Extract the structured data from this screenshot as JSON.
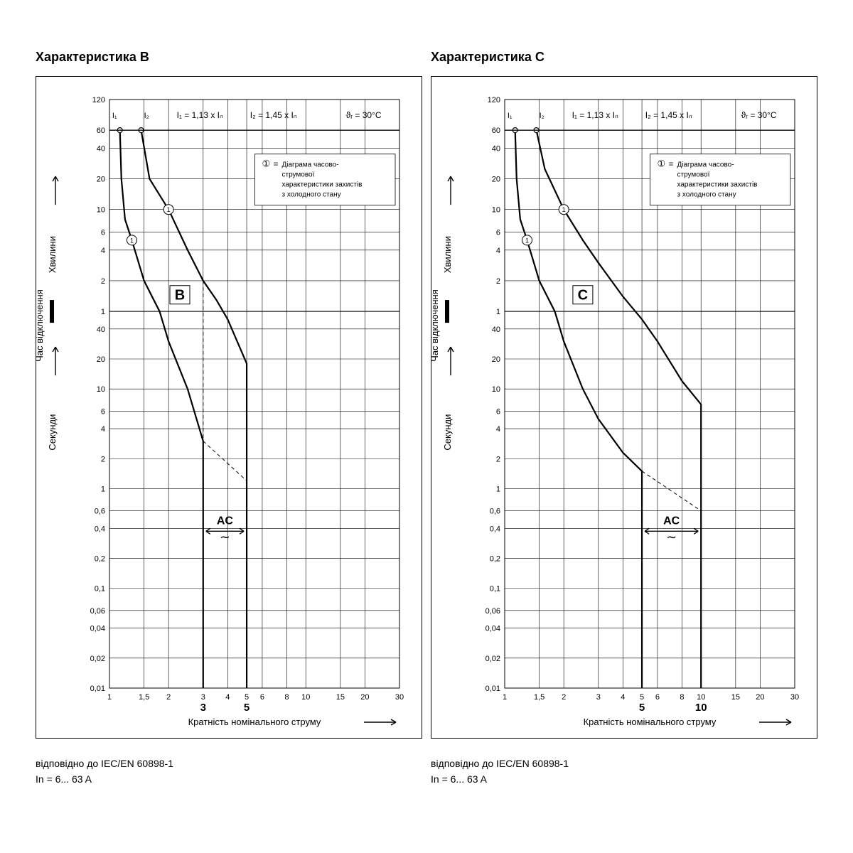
{
  "titles": {
    "b": "Характеристика B",
    "c": "Характеристика C"
  },
  "footers": {
    "b1": "відповідно до IEC/EN 60898-1",
    "b2": "In = 6... 63 A",
    "c1": "відповідно до IEC/EN 60898-1",
    "c2": "In = 6... 63 A"
  },
  "axes": {
    "xlabel": "Кратність номінального струму",
    "ylabel_upper": "Хвилини",
    "ylabel_lower": "Секунди",
    "ylabel_main": "Час відключення",
    "xticks": [
      1,
      1.5,
      2,
      3,
      4,
      5,
      6,
      8,
      10,
      15,
      20,
      30
    ],
    "xtick_labels": [
      "1",
      "1,5",
      "2",
      "3",
      "4",
      "5",
      "6",
      "8",
      "10",
      "15",
      "20",
      "30"
    ],
    "upper_ticks": [
      1,
      2,
      4,
      6,
      10,
      20,
      40,
      60,
      120
    ],
    "upper_labels": [
      "1",
      "2",
      "4",
      "6",
      "10",
      "20",
      "40",
      "60",
      "120"
    ],
    "lower_ticks": [
      0.01,
      0.02,
      0.04,
      0.06,
      0.1,
      0.2,
      0.4,
      0.6,
      1,
      2,
      4,
      6,
      10,
      20,
      40
    ],
    "lower_labels": [
      "0,01",
      "0,02",
      "0,04",
      "0,06",
      "0,1",
      "0,2",
      "0,4",
      "0,6",
      "1",
      "2",
      "4",
      "6",
      "10",
      "20",
      "40"
    ]
  },
  "annotations": {
    "i1": "I₁",
    "i2": "I₂",
    "eq1": "I₁ = 1,13 x Iₙ",
    "eq2": "I₂ = 1,45 x Iₙ",
    "temp": "ϑᵣ = 30°C",
    "legend_num": "①",
    "legend_eq": "=",
    "legend_txt": "Діаграма часово-\nструмової\nхарактеристики захистів\nз холодного стану",
    "ac": "AC",
    "tilde": "∼",
    "big_b": "B",
    "big_c": "C"
  },
  "style": {
    "curve_width": 2.2,
    "grid_color": "#000",
    "grid_width": 0.6,
    "font_tick": 11,
    "font_axis": 13,
    "font_big": 20
  },
  "trip_bounds": {
    "b": {
      "lo": 3,
      "hi": 5,
      "bold_lo": "3",
      "bold_hi": "5"
    },
    "c": {
      "lo": 5,
      "hi": 10,
      "bold_lo": "5",
      "bold_hi": "10"
    }
  },
  "curves": {
    "b_upper": [
      {
        "x": 1.45,
        "m": 60
      },
      {
        "x": 1.6,
        "m": 20
      },
      {
        "x": 2,
        "m": 10
      },
      {
        "x": 2.5,
        "m": 4
      },
      {
        "x": 3,
        "m": 2
      },
      {
        "x": 3.5,
        "m": 1.3
      },
      {
        "x": 4,
        "s": 50
      },
      {
        "x": 5,
        "s": 18
      }
    ],
    "b_lower": [
      {
        "x": 1.13,
        "m": 60
      },
      {
        "x": 1.15,
        "m": 20
      },
      {
        "x": 1.2,
        "m": 8
      },
      {
        "x": 1.3,
        "m": 5
      },
      {
        "x": 1.5,
        "m": 2
      },
      {
        "x": 1.8,
        "m": 1
      },
      {
        "x": 2,
        "s": 30
      },
      {
        "x": 2.5,
        "s": 10
      },
      {
        "x": 3,
        "s": 3
      }
    ],
    "c_upper": [
      {
        "x": 1.45,
        "m": 60
      },
      {
        "x": 1.6,
        "m": 25
      },
      {
        "x": 2,
        "m": 10
      },
      {
        "x": 2.5,
        "m": 5
      },
      {
        "x": 3,
        "m": 3
      },
      {
        "x": 4,
        "m": 1.4
      },
      {
        "x": 5,
        "s": 50
      },
      {
        "x": 6,
        "s": 30
      },
      {
        "x": 8,
        "s": 12
      },
      {
        "x": 10,
        "s": 7
      }
    ],
    "c_lower": [
      {
        "x": 1.13,
        "m": 60
      },
      {
        "x": 1.15,
        "m": 20
      },
      {
        "x": 1.2,
        "m": 8
      },
      {
        "x": 1.3,
        "m": 5
      },
      {
        "x": 1.5,
        "m": 2
      },
      {
        "x": 1.8,
        "m": 1
      },
      {
        "x": 2,
        "s": 30
      },
      {
        "x": 2.5,
        "s": 10
      },
      {
        "x": 3,
        "s": 5
      },
      {
        "x": 4,
        "s": 2.3
      },
      {
        "x": 5,
        "s": 1.5
      }
    ]
  },
  "dash": {
    "b": [
      [
        3,
        1,
        3,
        0.02
      ],
      [
        5,
        1,
        5,
        0.02
      ],
      [
        3,
        60,
        3,
        3
      ],
      [
        5,
        60,
        5,
        18
      ]
    ],
    "c": [
      [
        5,
        1.5,
        10,
        0.6
      ]
    ]
  }
}
